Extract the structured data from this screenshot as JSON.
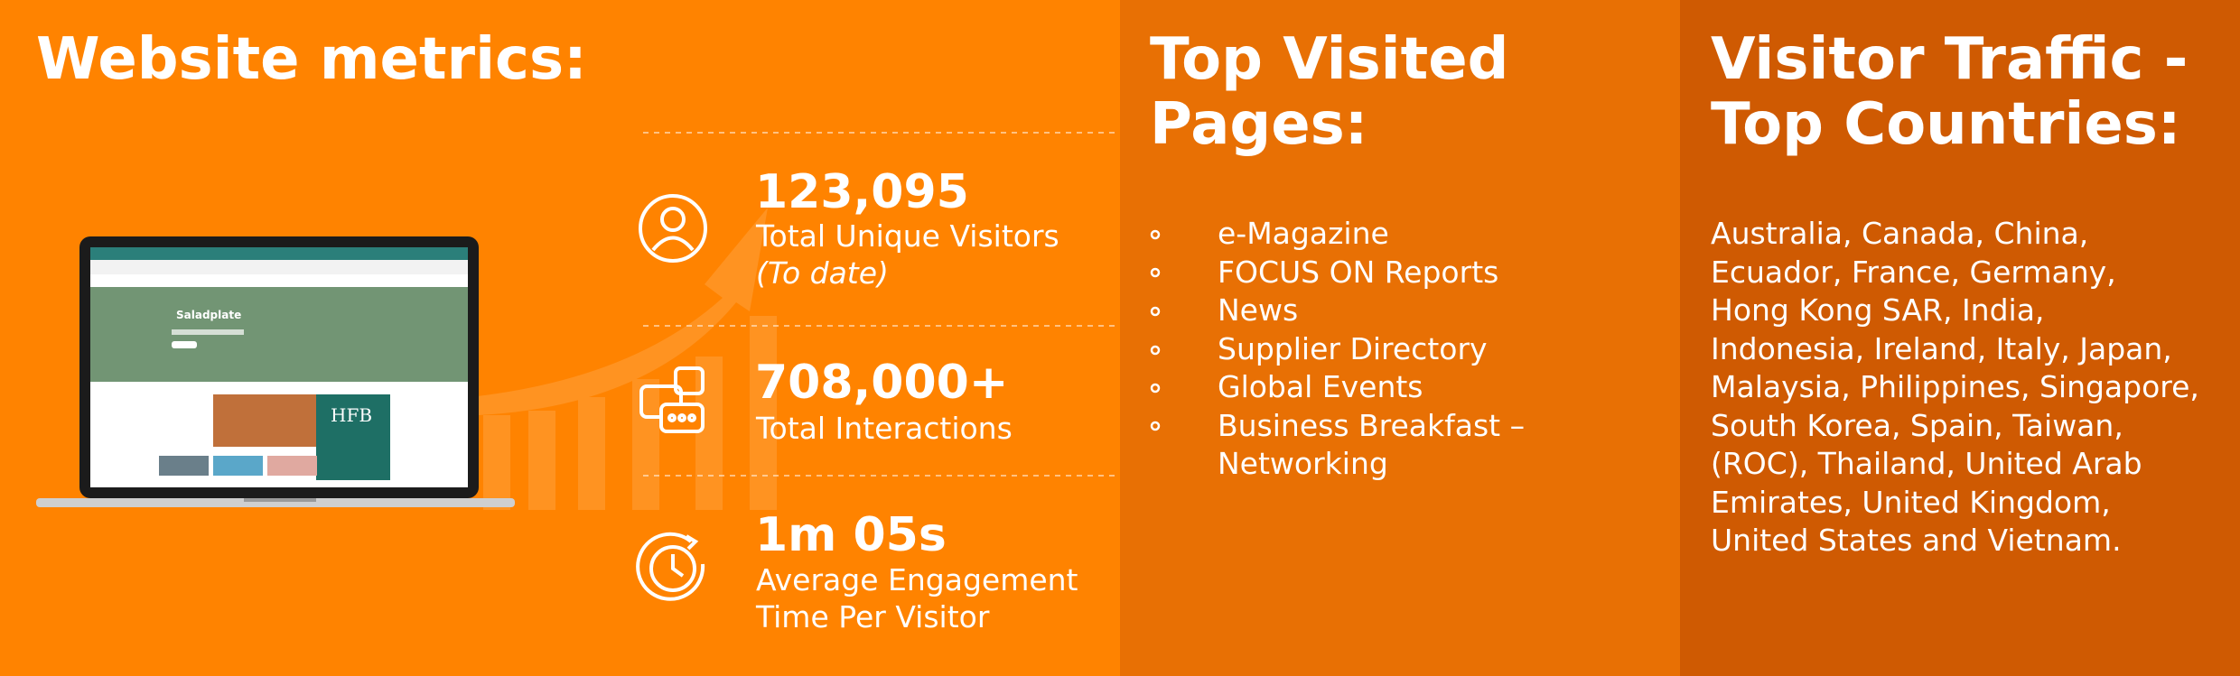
{
  "metrics": {
    "title": "Website metrics:",
    "items": [
      {
        "value": "123,095",
        "label": "Total Unique Visitors",
        "note": "(To date)"
      },
      {
        "value": "708,000+",
        "label": "Total Interactions"
      },
      {
        "value": "1m 05s",
        "label": "Average Engagement Time Per Visitor"
      }
    ],
    "screen": {
      "headline": "Saladplate",
      "cover": "HFB"
    }
  },
  "pages": {
    "title": "Top Visited Pages:",
    "items": [
      "e-Magazine",
      "FOCUS ON Reports",
      "News",
      "Supplier Directory",
      "Global Events",
      "Business Breakfast – Networking"
    ]
  },
  "countries": {
    "title": "Visitor Traffic - Top Countries:",
    "lines": [
      "Australia, Canada, China,",
      "Ecuador, France, Germany,",
      "Hong Kong SAR, India,",
      "Indonesia, Ireland, Italy, Japan,",
      "Malaysia, Philippines, Singapore,",
      "South Korea, Spain, Taiwan,",
      "(ROC), Thailand, United Arab",
      "Emirates, United Kingdom,",
      "United States and Vietnam."
    ]
  }
}
